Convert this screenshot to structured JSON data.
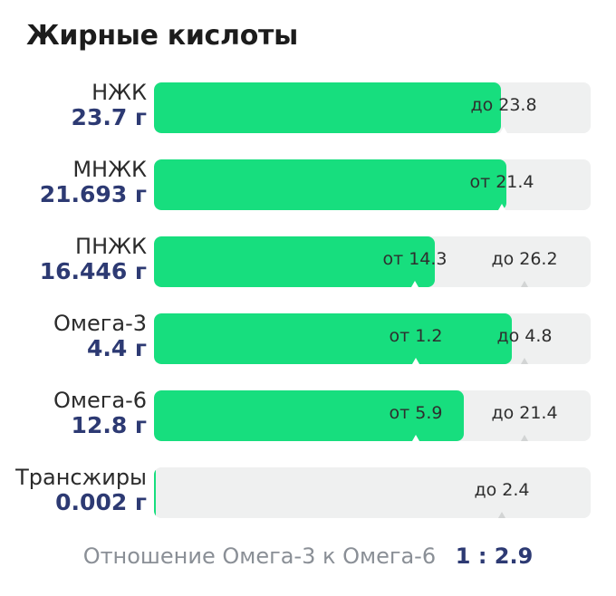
{
  "header": {
    "title": "Жирные кислоты"
  },
  "rows": [
    {
      "name": "НЖК",
      "amount": "23.7 г",
      "fill": 0.794,
      "markers": [
        {
          "label": "до 23.8",
          "pos": 0.8,
          "on_fill": true
        }
      ]
    },
    {
      "name": "МНЖК",
      "amount": "21.693 г",
      "fill": 0.808,
      "markers": [
        {
          "label": "от 21.4",
          "pos": 0.797,
          "on_fill": true
        }
      ]
    },
    {
      "name": "ПНЖК",
      "amount": "16.446 г",
      "fill": 0.643,
      "markers": [
        {
          "label": "от 14.3",
          "pos": 0.597,
          "on_fill": true
        },
        {
          "label": "до 26.2",
          "pos": 0.849,
          "on_fill": false
        }
      ]
    },
    {
      "name": "Омега-3",
      "amount": "4.4 г",
      "fill": 0.819,
      "markers": [
        {
          "label": "от 1.2",
          "pos": 0.6,
          "on_fill": true
        },
        {
          "label": "до 4.8",
          "pos": 0.849,
          "on_fill": false
        }
      ]
    },
    {
      "name": "Омега-6",
      "amount": "12.8 г",
      "fill": 0.709,
      "markers": [
        {
          "label": "от 5.9",
          "pos": 0.6,
          "on_fill": true
        },
        {
          "label": "до 21.4",
          "pos": 0.849,
          "on_fill": false
        }
      ]
    },
    {
      "name": "Трансжиры",
      "amount": "0.002 г",
      "fill": 0.003,
      "markers": [
        {
          "label": "до 2.4",
          "pos": 0.797,
          "on_fill": false
        }
      ]
    }
  ],
  "ratio": {
    "label": "Отношение Омега-3 к Омега-6",
    "value": "1 : 2.9"
  },
  "colors": {
    "fill": "#17de7e",
    "track": "#eff0f0",
    "amount": "#2d3a73",
    "ratio_label": "#8a8f96"
  }
}
